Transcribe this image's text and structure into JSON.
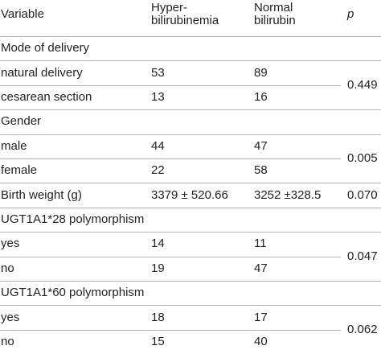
{
  "header": {
    "variable": "Variable",
    "hyper": [
      "Hyper-",
      "bilirubinemia"
    ],
    "normal": [
      "Normal",
      "bilirubin"
    ],
    "p": "p"
  },
  "sections": [
    {
      "title": "Mode of delivery",
      "rows": [
        [
          "natural delivery",
          "53",
          "89"
        ],
        [
          "cesarean section",
          "13",
          "16"
        ]
      ],
      "p": "0.449"
    },
    {
      "title": "Gender",
      "rows": [
        [
          "male",
          "44",
          "47"
        ],
        [
          "female",
          "22",
          "58"
        ]
      ],
      "p": "0.005"
    },
    {
      "rows": [
        [
          "Birth weight (g)",
          "3379 ± 520.66",
          "3252 ±328.5"
        ]
      ],
      "p": "0.070"
    },
    {
      "title": "UGT1A1*28 polymorphism",
      "rows": [
        [
          "yes",
          "14",
          "11"
        ],
        [
          "no",
          "19",
          "47"
        ]
      ],
      "p": "0.047"
    },
    {
      "title": "UGT1A1*60 polymorphism",
      "rows": [
        [
          "yes",
          "18",
          "17"
        ],
        [
          "no",
          "15",
          "40"
        ]
      ],
      "p": "0.062"
    }
  ]
}
